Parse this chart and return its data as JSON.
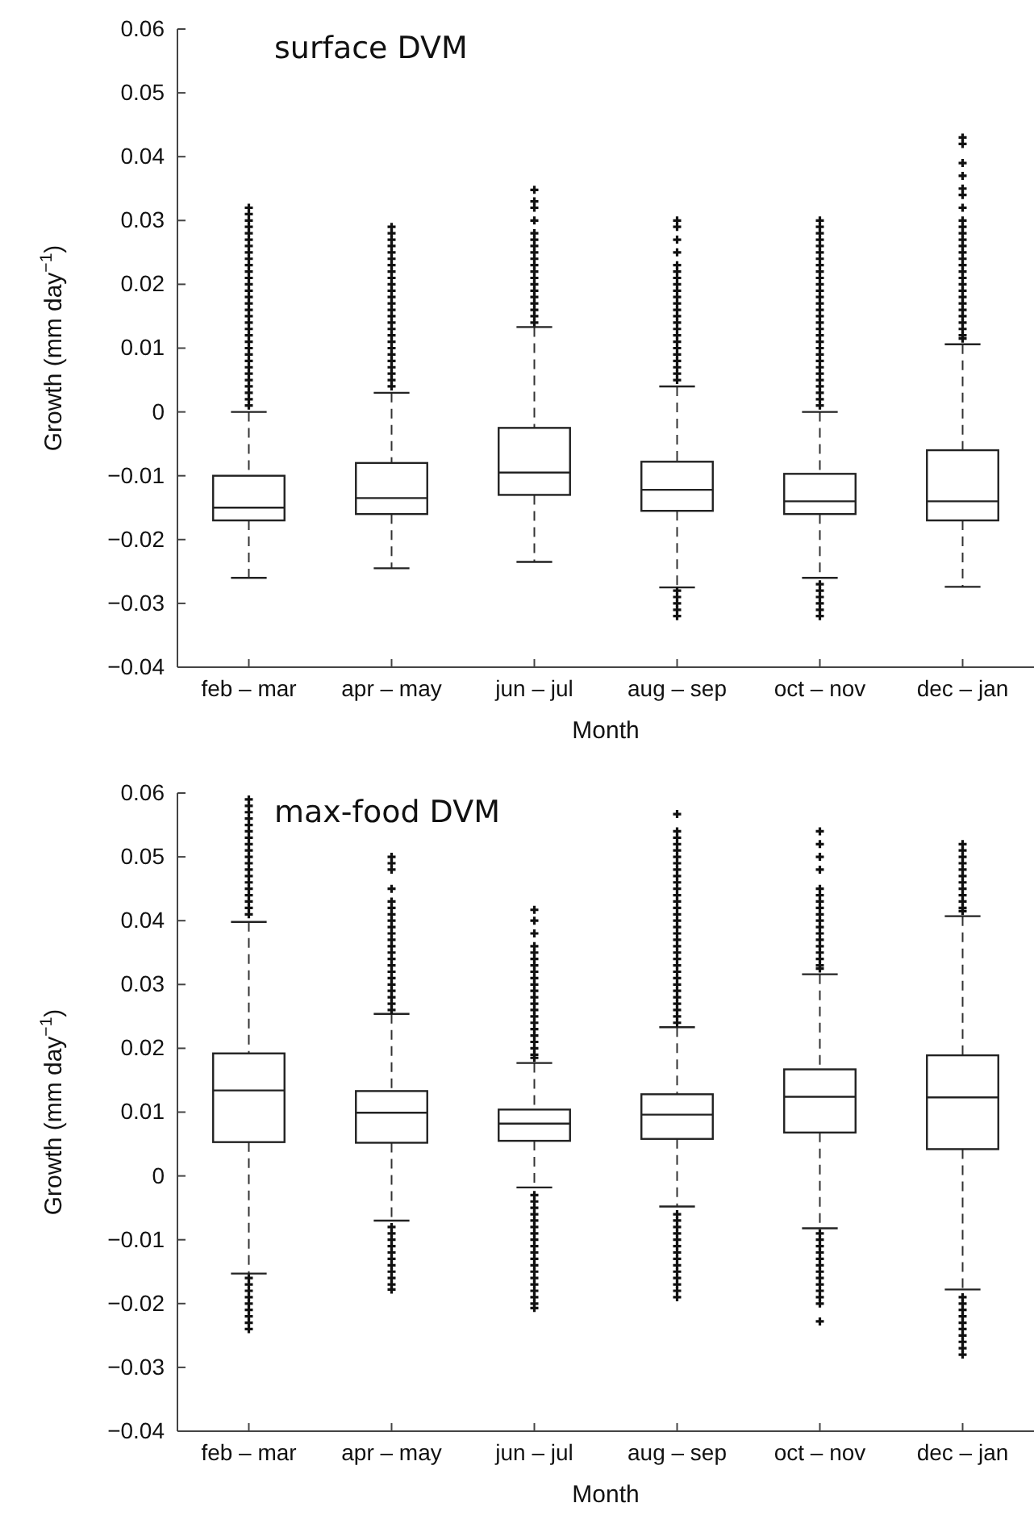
{
  "chart_data": [
    {
      "type": "box",
      "title": "surface DVM",
      "xlabel": "Month",
      "ylabel": "Growth (mm day$^{−1}$)",
      "categories": [
        "feb – mar",
        "apr – may",
        "jun – jul",
        "aug – sep",
        "oct – nov",
        "dec – jan"
      ],
      "ylim": [
        -0.04,
        0.06
      ],
      "yticks": [
        {
          "value": -0.04,
          "label": "−0.04"
        },
        {
          "value": -0.03,
          "label": "−0.03"
        },
        {
          "value": -0.02,
          "label": "−0.02"
        },
        {
          "value": -0.01,
          "label": "−0.01"
        },
        0,
        0.01,
        0.02,
        0.03,
        0.04,
        0.05,
        0.06
      ],
      "grid": false,
      "boxes": [
        {
          "low": -0.026,
          "q1": -0.017,
          "median": -0.015,
          "q3": -0.01,
          "high": 0.0,
          "outliers": [
            0.001,
            0.002,
            0.003,
            0.004,
            0.005,
            0.006,
            0.007,
            0.008,
            0.009,
            0.01,
            0.011,
            0.012,
            0.013,
            0.014,
            0.015,
            0.016,
            0.017,
            0.018,
            0.019,
            0.02,
            0.021,
            0.022,
            0.023,
            0.024,
            0.025,
            0.026,
            0.027,
            0.028,
            0.029,
            0.03,
            0.031,
            0.032
          ]
        },
        {
          "low": -0.0245,
          "q1": -0.016,
          "median": -0.0135,
          "q3": -0.008,
          "high": 0.003,
          "outliers": [
            0.004,
            0.005,
            0.006,
            0.007,
            0.008,
            0.009,
            0.01,
            0.011,
            0.012,
            0.013,
            0.014,
            0.015,
            0.016,
            0.017,
            0.018,
            0.019,
            0.02,
            0.021,
            0.022,
            0.023,
            0.024,
            0.025,
            0.026,
            0.027,
            0.028,
            0.029
          ]
        },
        {
          "low": -0.0235,
          "q1": -0.013,
          "median": -0.0095,
          "q3": -0.0025,
          "high": 0.0133,
          "outliers": [
            0.014,
            0.015,
            0.016,
            0.017,
            0.018,
            0.019,
            0.02,
            0.021,
            0.022,
            0.023,
            0.024,
            0.025,
            0.026,
            0.027,
            0.028,
            0.03,
            0.032,
            0.033,
            0.0348
          ]
        },
        {
          "low": -0.0275,
          "q1": -0.0155,
          "median": -0.0122,
          "q3": -0.0078,
          "high": 0.004,
          "outliers": [
            0.005,
            0.006,
            0.007,
            0.008,
            0.009,
            0.01,
            0.011,
            0.012,
            0.013,
            0.014,
            0.015,
            0.016,
            0.017,
            0.018,
            0.019,
            0.02,
            0.021,
            0.022,
            0.023,
            0.025,
            0.027,
            0.029,
            0.03,
            -0.028,
            -0.029,
            -0.03,
            -0.031,
            -0.032
          ]
        },
        {
          "low": -0.026,
          "q1": -0.016,
          "median": -0.014,
          "q3": -0.0097,
          "high": 0.0,
          "outliers": [
            0.001,
            0.002,
            0.003,
            0.004,
            0.005,
            0.006,
            0.007,
            0.008,
            0.009,
            0.01,
            0.011,
            0.012,
            0.013,
            0.014,
            0.015,
            0.016,
            0.017,
            0.018,
            0.019,
            0.02,
            0.021,
            0.022,
            0.023,
            0.024,
            0.025,
            0.026,
            0.027,
            0.028,
            0.029,
            0.03,
            -0.027,
            -0.028,
            -0.029,
            -0.03,
            -0.031,
            -0.032
          ]
        },
        {
          "low": -0.0274,
          "q1": -0.017,
          "median": -0.014,
          "q3": -0.006,
          "high": 0.0106,
          "outliers": [
            0.0115,
            0.012,
            0.013,
            0.014,
            0.015,
            0.016,
            0.017,
            0.018,
            0.019,
            0.02,
            0.021,
            0.022,
            0.023,
            0.024,
            0.025,
            0.026,
            0.027,
            0.028,
            0.029,
            0.03,
            0.032,
            0.034,
            0.035,
            0.037,
            0.039,
            0.042,
            0.043
          ]
        }
      ]
    },
    {
      "type": "box",
      "title": "max-food DVM",
      "xlabel": "Month",
      "ylabel": "Growth (mm day$^{−1}$)",
      "categories": [
        "feb – mar",
        "apr – may",
        "jun – jul",
        "aug – sep",
        "oct – nov",
        "dec – jan"
      ],
      "ylim": [
        -0.04,
        0.06
      ],
      "yticks": [
        {
          "value": -0.04,
          "label": "−0.04"
        },
        {
          "value": -0.03,
          "label": "−0.03"
        },
        {
          "value": -0.02,
          "label": "−0.02"
        },
        {
          "value": -0.01,
          "label": "−0.01"
        },
        0,
        0.01,
        0.02,
        0.03,
        0.04,
        0.05,
        0.06
      ],
      "grid": false,
      "boxes": [
        {
          "low": -0.0153,
          "q1": 0.0053,
          "median": 0.0134,
          "q3": 0.0192,
          "high": 0.0398,
          "outliers": [
            0.041,
            0.042,
            0.043,
            0.044,
            0.045,
            0.046,
            0.047,
            0.048,
            0.049,
            0.05,
            0.051,
            0.052,
            0.053,
            0.054,
            0.055,
            0.056,
            0.057,
            0.058,
            0.059,
            -0.016,
            -0.017,
            -0.018,
            -0.019,
            -0.02,
            -0.021,
            -0.022,
            -0.023,
            -0.024
          ]
        },
        {
          "low": -0.007,
          "q1": 0.0052,
          "median": 0.0099,
          "q3": 0.0133,
          "high": 0.0254,
          "outliers": [
            0.026,
            0.027,
            0.028,
            0.029,
            0.03,
            0.031,
            0.032,
            0.033,
            0.034,
            0.035,
            0.036,
            0.037,
            0.038,
            0.039,
            0.04,
            0.041,
            0.042,
            0.043,
            0.045,
            0.048,
            0.049,
            0.05,
            -0.008,
            -0.009,
            -0.01,
            -0.011,
            -0.012,
            -0.013,
            -0.014,
            -0.015,
            -0.016,
            -0.017,
            -0.0178
          ]
        },
        {
          "low": -0.0018,
          "q1": 0.0055,
          "median": 0.0082,
          "q3": 0.0104,
          "high": 0.0177,
          "outliers": [
            0.0185,
            0.019,
            0.02,
            0.021,
            0.022,
            0.023,
            0.024,
            0.025,
            0.026,
            0.027,
            0.028,
            0.029,
            0.03,
            0.031,
            0.032,
            0.033,
            0.034,
            0.035,
            0.036,
            0.038,
            0.04,
            0.0417,
            -0.003,
            -0.004,
            -0.005,
            -0.006,
            -0.007,
            -0.008,
            -0.009,
            -0.01,
            -0.011,
            -0.012,
            -0.013,
            -0.014,
            -0.015,
            -0.016,
            -0.017,
            -0.018,
            -0.019,
            -0.02,
            -0.0207
          ]
        },
        {
          "low": -0.0048,
          "q1": 0.0058,
          "median": 0.0096,
          "q3": 0.0128,
          "high": 0.0233,
          "outliers": [
            0.024,
            0.025,
            0.026,
            0.027,
            0.028,
            0.029,
            0.03,
            0.031,
            0.032,
            0.033,
            0.034,
            0.035,
            0.036,
            0.037,
            0.038,
            0.039,
            0.04,
            0.041,
            0.042,
            0.043,
            0.044,
            0.045,
            0.046,
            0.047,
            0.048,
            0.049,
            0.05,
            0.051,
            0.052,
            0.053,
            0.054,
            0.0567,
            -0.006,
            -0.007,
            -0.008,
            -0.009,
            -0.01,
            -0.011,
            -0.012,
            -0.013,
            -0.014,
            -0.015,
            -0.016,
            -0.017,
            -0.018,
            -0.019
          ]
        },
        {
          "low": -0.0082,
          "q1": 0.0068,
          "median": 0.0124,
          "q3": 0.0167,
          "high": 0.0316,
          "outliers": [
            0.0325,
            0.033,
            0.034,
            0.035,
            0.036,
            0.037,
            0.038,
            0.039,
            0.04,
            0.041,
            0.042,
            0.043,
            0.044,
            0.045,
            0.048,
            0.05,
            0.052,
            0.054,
            -0.009,
            -0.01,
            -0.011,
            -0.012,
            -0.013,
            -0.014,
            -0.015,
            -0.016,
            -0.017,
            -0.018,
            -0.019,
            -0.02,
            -0.0228
          ]
        },
        {
          "low": -0.0178,
          "q1": 0.0042,
          "median": 0.0123,
          "q3": 0.0189,
          "high": 0.0407,
          "outliers": [
            0.0415,
            0.042,
            0.043,
            0.044,
            0.045,
            0.046,
            0.047,
            0.048,
            0.049,
            0.05,
            0.051,
            0.052,
            -0.019,
            -0.02,
            -0.021,
            -0.022,
            -0.023,
            -0.024,
            -0.025,
            -0.026,
            -0.027,
            -0.028
          ]
        }
      ]
    }
  ]
}
